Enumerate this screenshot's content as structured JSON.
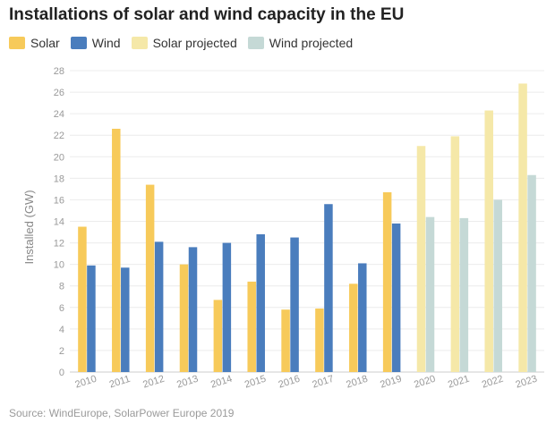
{
  "chart_data": {
    "type": "bar",
    "title": "Installations of solar and wind capacity in the EU",
    "xlabel": "",
    "ylabel": "Installed (GW)",
    "ylim": [
      0,
      28
    ],
    "yticks": [
      0,
      2,
      4,
      6,
      8,
      10,
      12,
      14,
      16,
      18,
      20,
      22,
      24,
      26,
      28
    ],
    "grid": true,
    "legend_position": "top-left",
    "categories": [
      "2010",
      "2011",
      "2012",
      "2013",
      "2014",
      "2015",
      "2016",
      "2017",
      "2018",
      "2019",
      "2020",
      "2021",
      "2022",
      "2023"
    ],
    "series": [
      {
        "name": "Solar",
        "color": "#f7ca5a",
        "values": [
          13.5,
          22.6,
          17.4,
          10.0,
          6.7,
          8.4,
          5.8,
          5.9,
          8.2,
          16.7,
          null,
          null,
          null,
          null
        ]
      },
      {
        "name": "Wind",
        "color": "#4a7dbd",
        "values": [
          9.9,
          9.7,
          12.1,
          11.6,
          12.0,
          12.8,
          12.5,
          15.6,
          10.1,
          13.8,
          null,
          null,
          null,
          null
        ]
      },
      {
        "name": "Solar projected",
        "color": "#f5e8a8",
        "values": [
          null,
          null,
          null,
          null,
          null,
          null,
          null,
          null,
          null,
          null,
          21.0,
          21.9,
          24.3,
          26.8
        ]
      },
      {
        "name": "Wind projected",
        "color": "#c5d9d6",
        "values": [
          null,
          null,
          null,
          null,
          null,
          null,
          null,
          null,
          null,
          null,
          14.4,
          14.3,
          16.0,
          18.3
        ]
      }
    ],
    "source": "Source: WindEurope, SolarPower Europe 2019"
  }
}
